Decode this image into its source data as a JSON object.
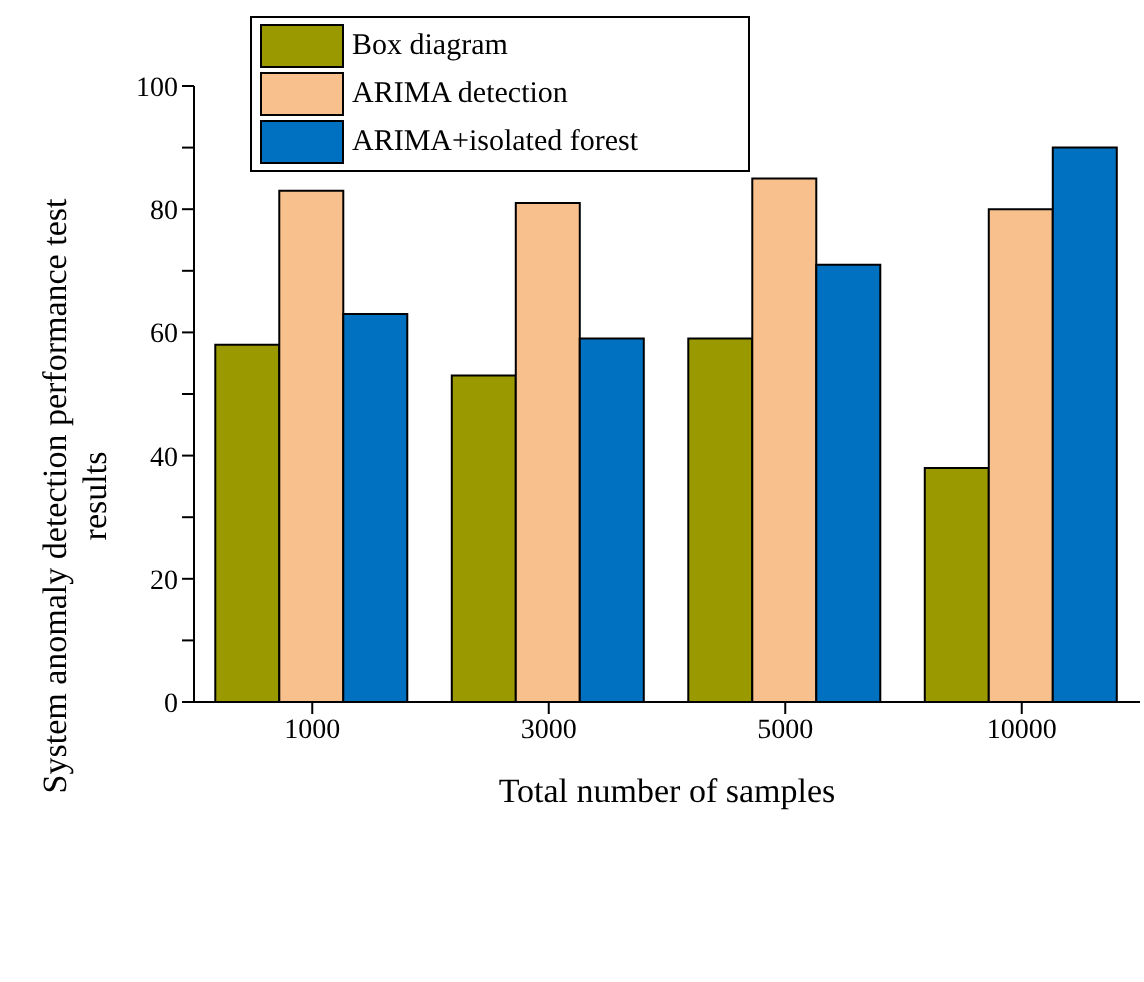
{
  "chart_data": {
    "type": "bar",
    "xlabel": "Total number of samples",
    "ylabel": "System anomaly detection performance test results",
    "categories": [
      "1000",
      "3000",
      "5000",
      "10000"
    ],
    "series": [
      {
        "name": "Box diagram",
        "color": "#9a9a00",
        "values": [
          58,
          53,
          59,
          38
        ]
      },
      {
        "name": "ARIMA detection",
        "color": "#f8c08c",
        "values": [
          83,
          81,
          85,
          80
        ]
      },
      {
        "name": "ARIMA+isolated forest",
        "color": "#0070c0",
        "values": [
          63,
          59,
          71,
          90
        ]
      }
    ],
    "ylim": [
      0,
      100
    ],
    "yticks": [
      0,
      {
        "value": 10,
        "label": null
      },
      20,
      {
        "value": 30,
        "label": null
      },
      40,
      {
        "value": 50,
        "label": null
      },
      60,
      {
        "value": 70,
        "label": null
      },
      80,
      {
        "value": 90,
        "label": null
      },
      100
    ],
    "grid": false,
    "legend": "top left"
  }
}
